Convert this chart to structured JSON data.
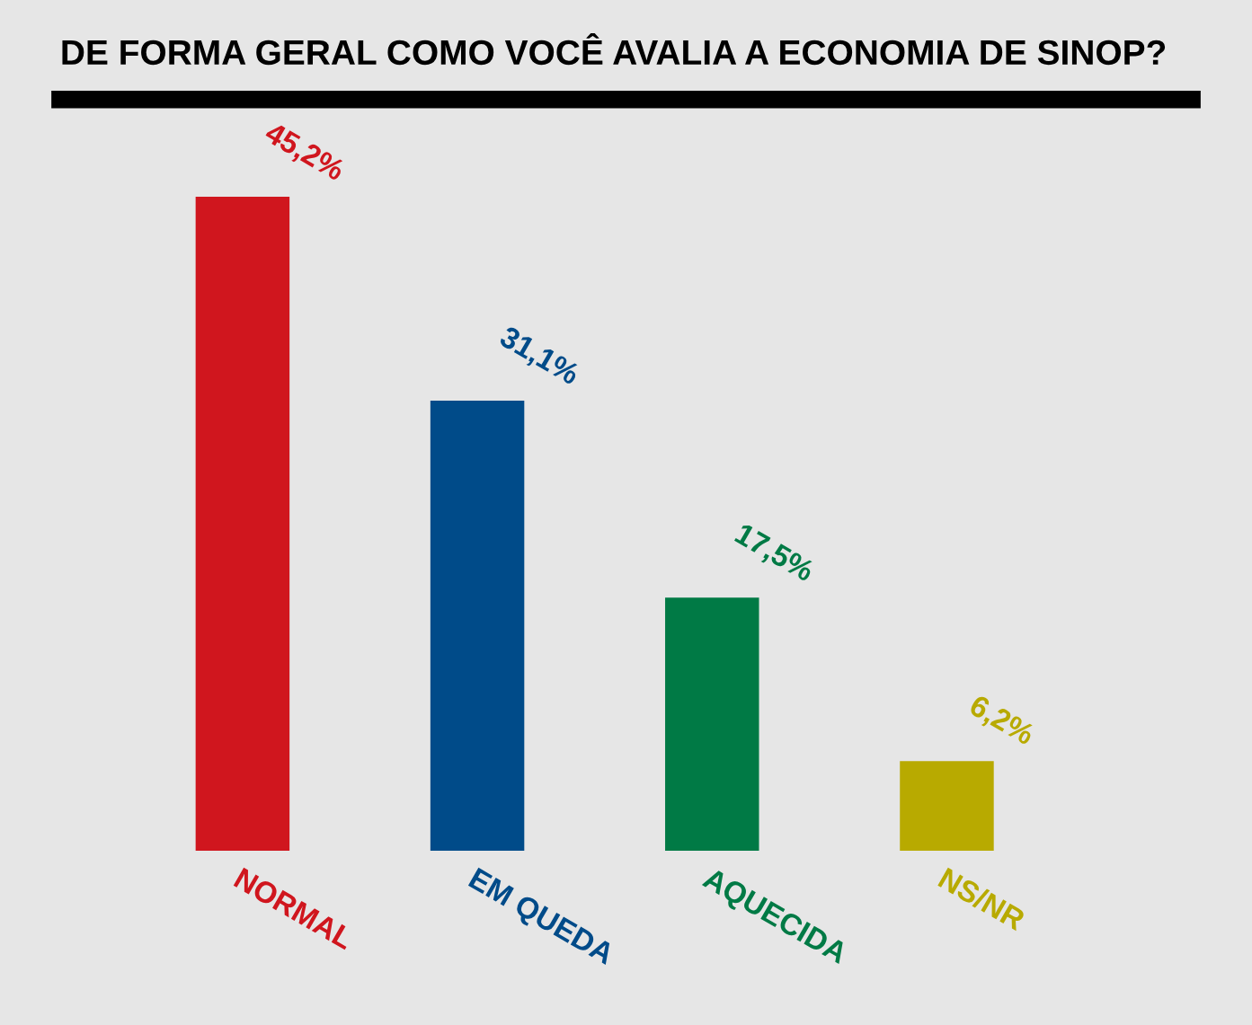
{
  "chart_data": {
    "type": "bar",
    "title": "DE FORMA GERAL COMO VOCÊ AVALIA A ECONOMIA DE SINOP?",
    "categories": [
      "NORMAL",
      "EM QUEDA",
      "AQUECIDA",
      "NS/NR"
    ],
    "values": [
      45.2,
      31.1,
      17.5,
      6.2
    ],
    "value_labels": [
      "45,2%",
      "31,1%",
      "17,5%",
      "6,2%"
    ],
    "colors": [
      "#d0161e",
      "#004b89",
      "#007a45",
      "#b8aa00"
    ],
    "tick_labels": "x",
    "grid": false
  }
}
